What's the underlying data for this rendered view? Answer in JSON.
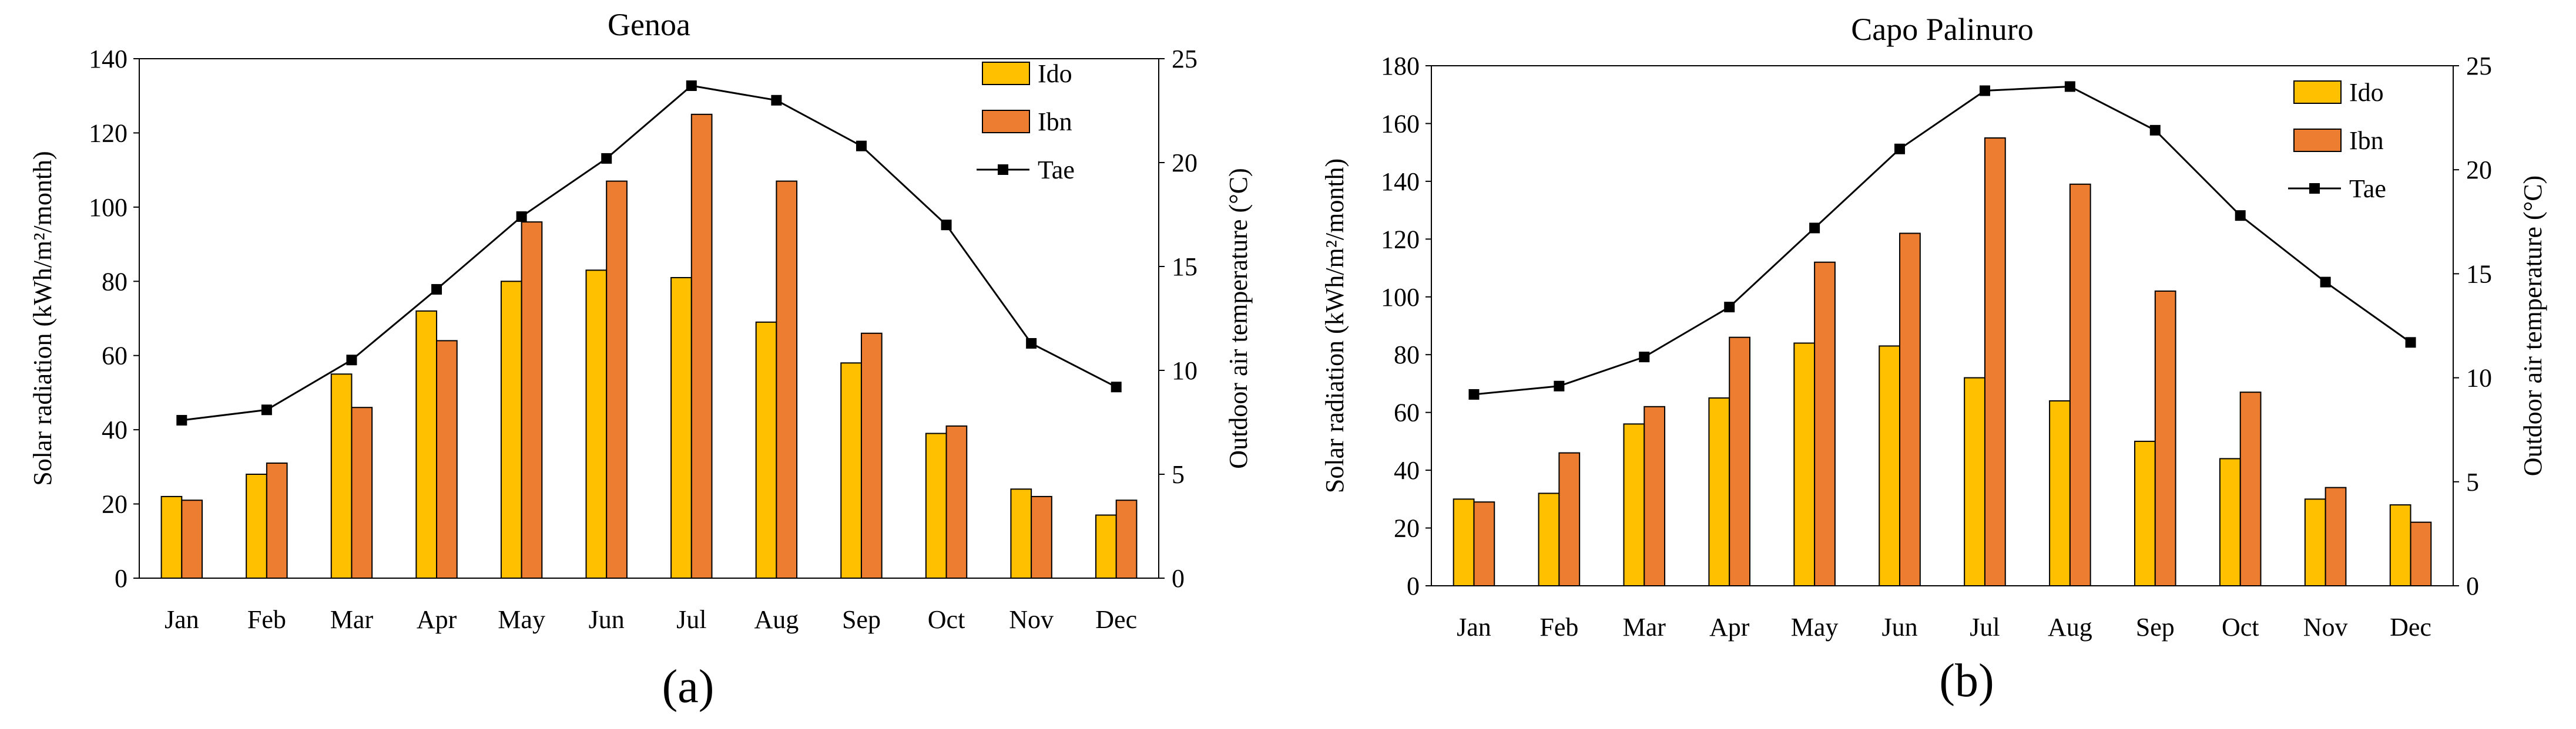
{
  "colors": {
    "ido": "#FFC000",
    "ibn": "#ED7D31",
    "tae": "#000000",
    "axis": "#000000"
  },
  "chart_data": [
    {
      "type": "bar",
      "title": "Genoa",
      "panel_label": "(a)",
      "categories": [
        "Jan",
        "Feb",
        "Mar",
        "Apr",
        "May",
        "Jun",
        "Jul",
        "Aug",
        "Sep",
        "Oct",
        "Nov",
        "Dec"
      ],
      "ylabel": "Solar radiation (kWh/m²/month)",
      "y2label": "Outdoor air temperature (°C)",
      "ylim": [
        0,
        140
      ],
      "yticks": [
        0,
        20,
        40,
        60,
        80,
        100,
        120,
        140
      ],
      "y2lim": [
        0,
        25
      ],
      "y2ticks": [
        0,
        5,
        10,
        15,
        20,
        25
      ],
      "legend_position": "top-right",
      "series": [
        {
          "name": "Ido",
          "kind": "bar",
          "axis": "left",
          "values": [
            22,
            28,
            55,
            72,
            80,
            83,
            81,
            69,
            58,
            39,
            24,
            17
          ]
        },
        {
          "name": "Ibn",
          "kind": "bar",
          "axis": "left",
          "values": [
            21,
            31,
            46,
            64,
            96,
            107,
            125,
            107,
            66,
            41,
            22,
            21
          ]
        },
        {
          "name": "Tae",
          "kind": "line",
          "axis": "right",
          "values": [
            7.6,
            8.1,
            10.5,
            13.9,
            17.4,
            20.2,
            23.7,
            23.0,
            20.8,
            17.0,
            11.3,
            9.2
          ]
        }
      ]
    },
    {
      "type": "bar",
      "title": "Capo Palinuro",
      "panel_label": "(b)",
      "categories": [
        "Jan",
        "Feb",
        "Mar",
        "Apr",
        "May",
        "Jun",
        "Jul",
        "Aug",
        "Sep",
        "Oct",
        "Nov",
        "Dec"
      ],
      "ylabel": "Solar radiation (kWh/m²/month)",
      "y2label": "Outdoor air temperature (°C)",
      "ylim": [
        0,
        180
      ],
      "yticks": [
        0,
        20,
        40,
        60,
        80,
        100,
        120,
        140,
        160,
        180
      ],
      "y2lim": [
        0,
        25
      ],
      "y2ticks": [
        0,
        5,
        10,
        15,
        20,
        25
      ],
      "legend_position": "top-right",
      "series": [
        {
          "name": "Ido",
          "kind": "bar",
          "axis": "left",
          "values": [
            30,
            32,
            56,
            65,
            84,
            83,
            72,
            64,
            50,
            44,
            30,
            28
          ]
        },
        {
          "name": "Ibn",
          "kind": "bar",
          "axis": "left",
          "values": [
            29,
            46,
            62,
            86,
            112,
            122,
            155,
            139,
            102,
            67,
            34,
            22
          ]
        },
        {
          "name": "Tae",
          "kind": "line",
          "axis": "right",
          "values": [
            9.2,
            9.6,
            11.0,
            13.4,
            17.2,
            21.0,
            23.8,
            24.0,
            21.9,
            17.8,
            14.6,
            11.7
          ]
        }
      ]
    }
  ]
}
